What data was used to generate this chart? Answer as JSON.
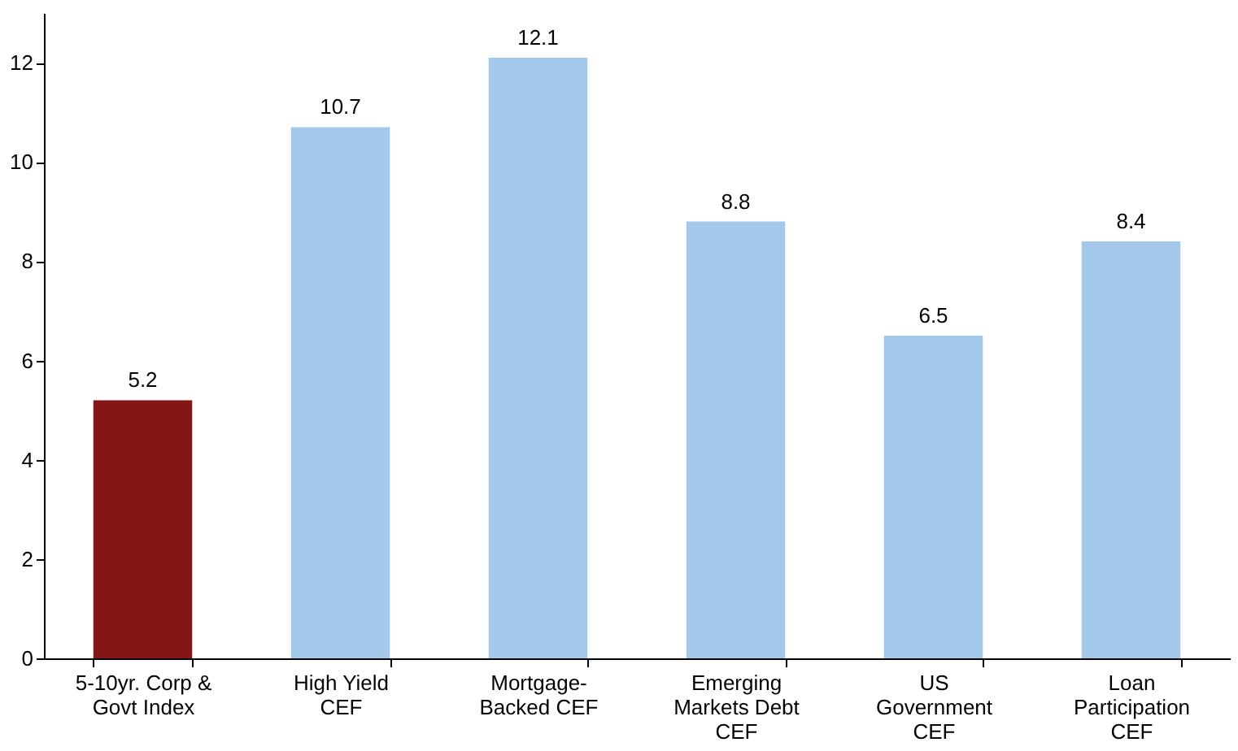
{
  "chart_data": {
    "type": "bar",
    "categories": [
      "5-10yr. Corp &\nGovt Index",
      "High Yield\nCEF",
      "Mortgage-\nBacked CEF",
      "Emerging\nMarkets Debt\nCEF",
      "US\nGovernment\nCEF",
      "Loan\nParticipation\nCEF"
    ],
    "values": [
      5.2,
      10.7,
      12.1,
      8.8,
      6.5,
      8.4
    ],
    "colors": [
      "#841617",
      "#a3c8ea",
      "#a3c8ea",
      "#a3c8ea",
      "#a3c8ea",
      "#a3c8ea"
    ],
    "ylim": [
      0,
      13
    ],
    "yticks": [
      0,
      2,
      4,
      6,
      8,
      10,
      12
    ],
    "grid": false,
    "data_labels": true
  }
}
